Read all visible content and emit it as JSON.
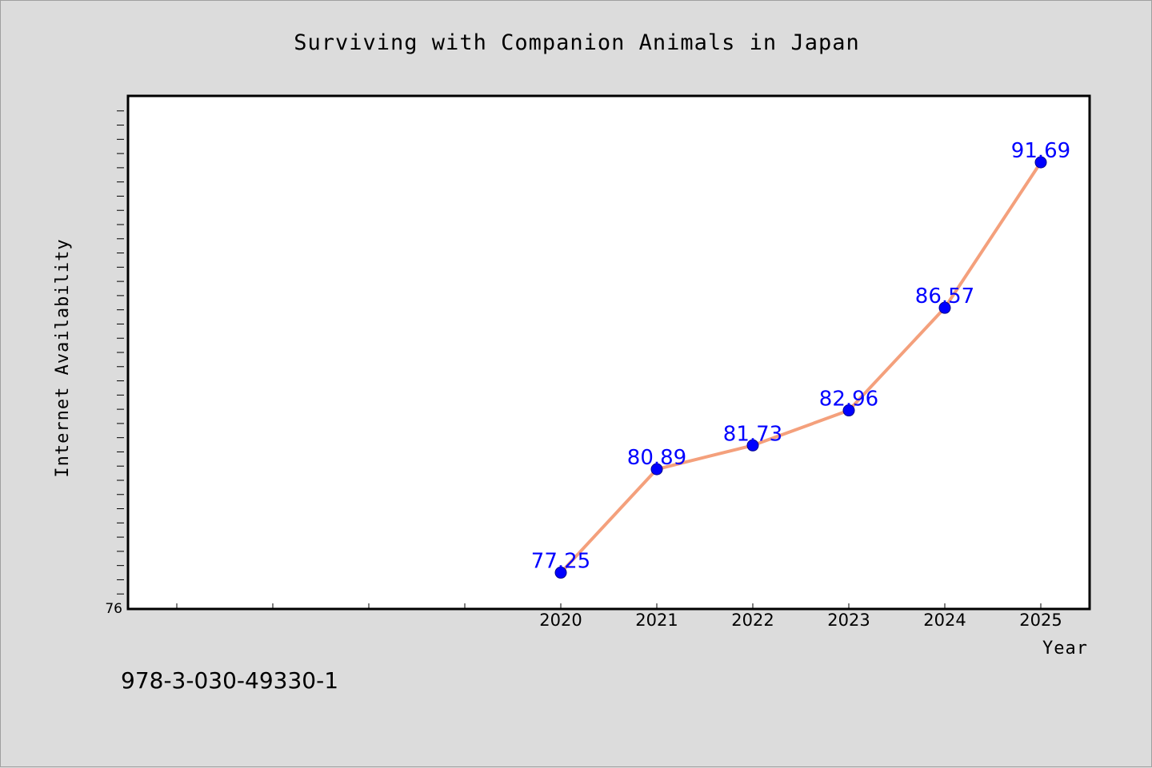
{
  "chart_data": {
    "type": "line",
    "title": "Surviving with Companion Animals in Japan",
    "xlabel": "Year",
    "ylabel": "Internet Availability",
    "categories": [
      "2020",
      "2021",
      "2022",
      "2023",
      "2024",
      "2025"
    ],
    "series": [
      {
        "values": [
          77.25,
          80.89,
          81.73,
          82.96,
          86.57,
          91.69
        ]
      }
    ],
    "ylim": [
      76,
      94
    ],
    "y_tick_labels": [
      "76"
    ],
    "x_range": [
      2015.5,
      2025.5
    ],
    "line_color": "#f4a07c",
    "marker_color": "#0000ff",
    "label_color": "#0000ff",
    "plot_background": "#ffffff",
    "page_background": "#dcdcdc",
    "grid": false,
    "legend": "none"
  },
  "footnote": "978-3-030-49330-1"
}
